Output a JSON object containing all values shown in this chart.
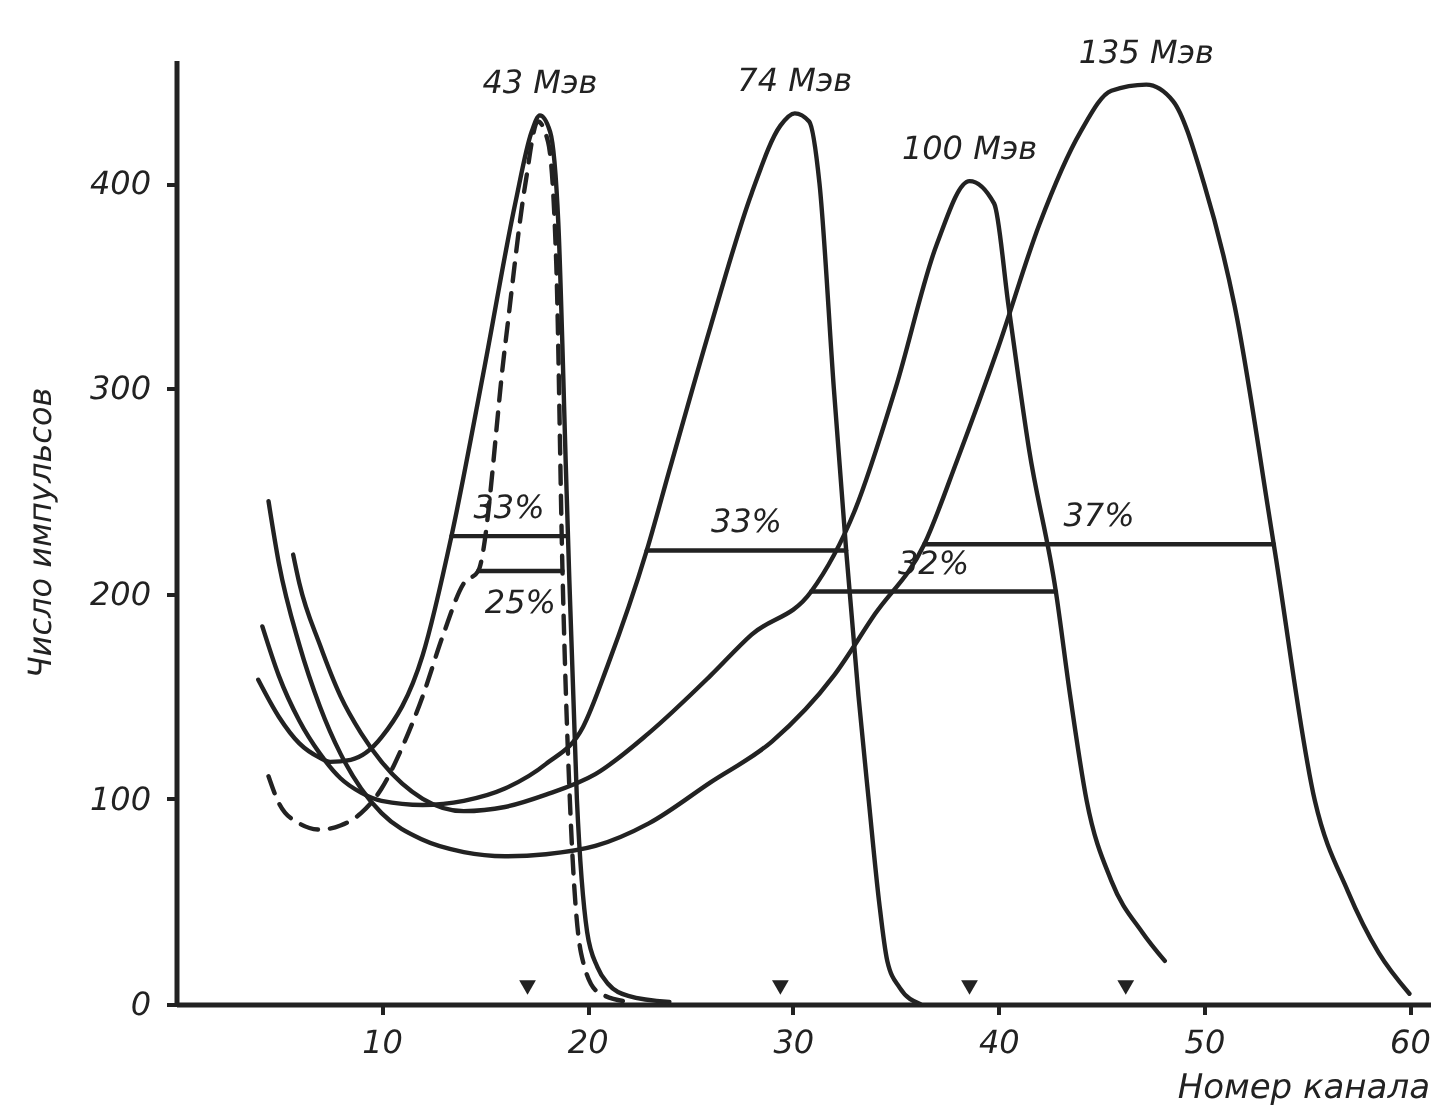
{
  "chart_data": {
    "type": "line",
    "xlabel": "Номер канала",
    "ylabel": "Число импульсов",
    "xlim": [
      0,
      61
    ],
    "ylim": [
      0,
      460
    ],
    "xticks": [
      10,
      20,
      30,
      40,
      50,
      60
    ],
    "yticks": [
      0,
      100,
      200,
      300,
      400
    ],
    "grid": false,
    "marker": "none",
    "series": [
      {
        "name": "43 Мэв",
        "color": "#222222",
        "line_style": "solid",
        "x": [
          4,
          5,
          6,
          7,
          7.5,
          8.5,
          10,
          12,
          13.4,
          15,
          16.5,
          17.3,
          17.7,
          18.2,
          18.6,
          19,
          19.5,
          20,
          20.5,
          21,
          22,
          24
        ],
        "values": [
          158,
          140,
          127,
          120,
          118,
          119,
          130,
          170,
          228,
          310,
          390,
          425,
          433,
          425,
          380,
          250,
          100,
          35,
          18,
          10,
          4,
          1
        ]
      },
      {
        "color": "#222222",
        "line_style": "dashed",
        "x": [
          4.5,
          5,
          6,
          7,
          8,
          9,
          10,
          11,
          12,
          13,
          14,
          14.7,
          16,
          17,
          17.6,
          18.1,
          18.5,
          18.8,
          19.2,
          19.7,
          20.5,
          22
        ],
        "values": [
          111,
          98,
          88,
          85,
          87,
          93,
          105,
          125,
          150,
          180,
          205,
          211,
          320,
          400,
          430,
          420,
          360,
          211,
          90,
          25,
          6,
          1
        ]
      },
      {
        "name": "74 Мэв",
        "color": "#222222",
        "line_style": "solid",
        "x": [
          4.2,
          5,
          6,
          7,
          8,
          9,
          10,
          12,
          14,
          16,
          18,
          19.8,
          21,
          22.9,
          24,
          26,
          28,
          29.4,
          30.1,
          30.8,
          31.3,
          32,
          32.6,
          33.2,
          33.7,
          34.2,
          34.6,
          35.2,
          36.2
        ],
        "values": [
          184,
          160,
          138,
          122,
          110,
          103,
          99,
          97,
          99,
          105,
          117,
          135,
          165,
          221,
          260,
          330,
          395,
          428,
          434,
          430,
          400,
          300,
          221,
          150,
          99,
          50,
          21,
          8,
          0
        ]
      },
      {
        "name": "100 Мэв",
        "color": "#222222",
        "line_style": "solid",
        "x": [
          5.7,
          6,
          7,
          8,
          9,
          10,
          12,
          14,
          16,
          18,
          20.4,
          23,
          26,
          28,
          30.9,
          33,
          35,
          37,
          38.6,
          39.8,
          40.5,
          41.5,
          42.8,
          43.5,
          44.3,
          45.5,
          47,
          48.1
        ],
        "values": [
          219,
          205,
          175,
          150,
          132,
          118,
          100,
          94,
          96,
          102,
          112,
          132,
          160,
          180,
          201,
          240,
          300,
          370,
          401,
          390,
          340,
          270,
          201,
          150,
          99,
          60,
          35,
          21
        ]
      },
      {
        "name": "135 Мэв",
        "color": "#222222",
        "line_style": "solid",
        "x": [
          4.5,
          5,
          6,
          7,
          8,
          9,
          10,
          12,
          14,
          16,
          18,
          20.4,
          23,
          26,
          29,
          32,
          34,
          36.4,
          38,
          40,
          42,
          44,
          45.5,
          47.2,
          48.5,
          50,
          51.5,
          53.4,
          55.4,
          57,
          58.5,
          60
        ],
        "values": [
          245,
          215,
          175,
          145,
          122,
          105,
          93,
          80,
          74,
          72,
          73,
          77,
          88,
          108,
          128,
          160,
          190,
          224,
          265,
          320,
          380,
          425,
          445,
          448,
          440,
          400,
          340,
          224,
          99,
          55,
          25,
          5
        ]
      },
      {
        "name": "33%",
        "color": "#222222",
        "line_style": "solid",
        "x": [
          13.4,
          19
        ],
        "values": [
          228,
          228
        ]
      },
      {
        "name": "25%",
        "color": "#222222",
        "line_style": "solid",
        "x": [
          14.7,
          18.8
        ],
        "values": [
          211,
          211
        ]
      },
      {
        "name": "33%",
        "color": "#222222",
        "line_style": "solid",
        "x": [
          22.9,
          32.6
        ],
        "values": [
          221,
          221
        ]
      },
      {
        "name": "32%",
        "color": "#222222",
        "line_style": "solid",
        "x": [
          30.9,
          42.8
        ],
        "values": [
          201,
          201
        ]
      },
      {
        "name": "37%",
        "color": "#222222",
        "line_style": "solid",
        "x": [
          36.4,
          53.4
        ],
        "values": [
          224,
          224
        ]
      },
      {
        "type": "scatter",
        "marker": "triangle",
        "color": "#222222",
        "x": [
          17.1,
          29.4,
          38.6,
          46.2
        ],
        "values": [
          8,
          8,
          8,
          8
        ]
      }
    ]
  }
}
